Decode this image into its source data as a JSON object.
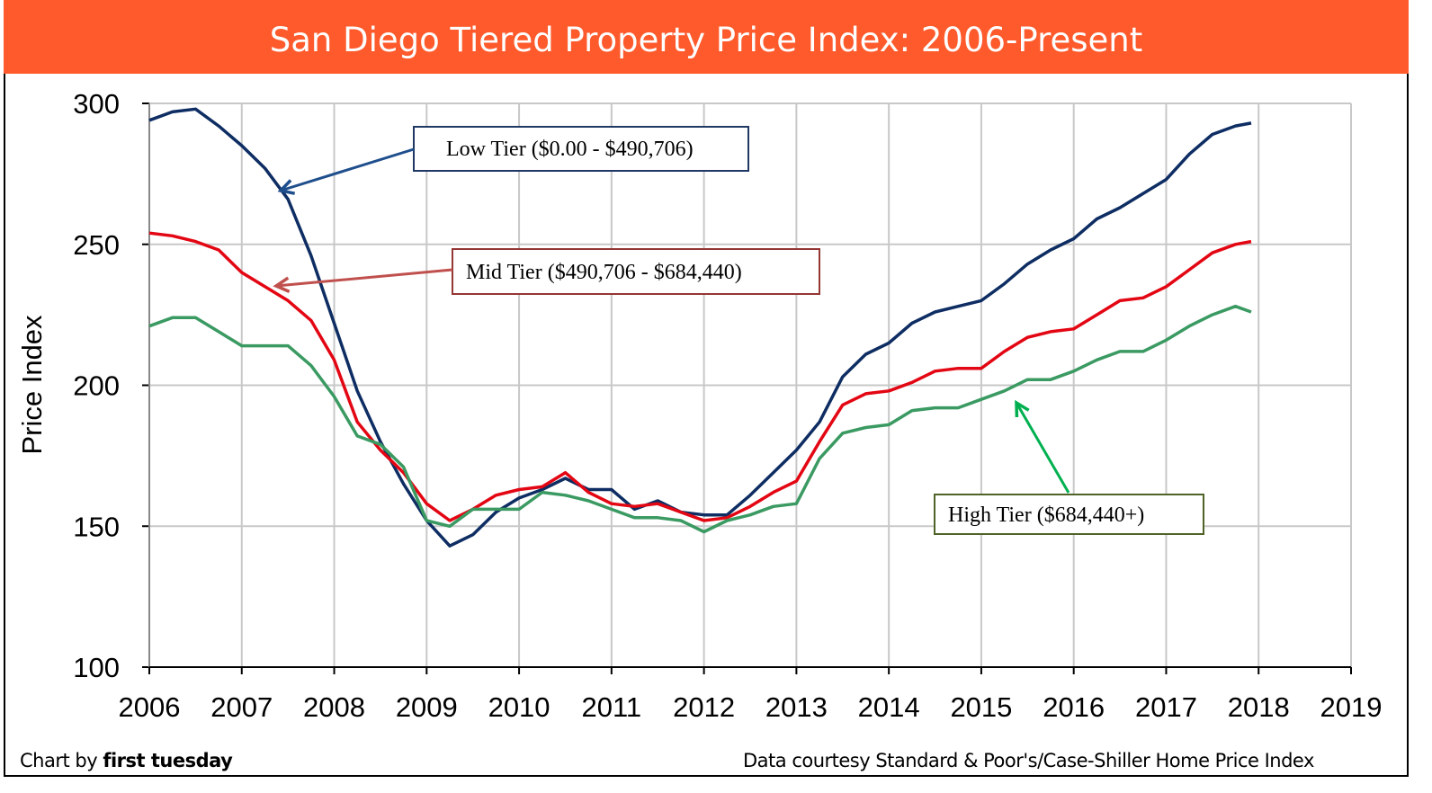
{
  "chart_data": {
    "type": "line",
    "title": "San Diego Tiered Property Price Index: 2006-Present",
    "xlabel": "",
    "ylabel": "Price Index",
    "xlim": [
      2006,
      2019
    ],
    "ylim": [
      100,
      300
    ],
    "x_ticks": [
      "2006",
      "2007",
      "2008",
      "2009",
      "2010",
      "2011",
      "2012",
      "2013",
      "2014",
      "2015",
      "2016",
      "2017",
      "2018",
      "2019"
    ],
    "y_ticks": [
      "100",
      "150",
      "200",
      "250",
      "300"
    ],
    "grid": true,
    "x": [
      2006.0,
      2006.25,
      2006.5,
      2006.75,
      2007.0,
      2007.25,
      2007.5,
      2007.75,
      2008.0,
      2008.25,
      2008.5,
      2008.75,
      2009.0,
      2009.25,
      2009.5,
      2009.75,
      2010.0,
      2010.25,
      2010.5,
      2010.75,
      2011.0,
      2011.25,
      2011.5,
      2011.75,
      2012.0,
      2012.25,
      2012.5,
      2012.75,
      2013.0,
      2013.25,
      2013.5,
      2013.75,
      2014.0,
      2014.25,
      2014.5,
      2014.75,
      2015.0,
      2015.25,
      2015.5,
      2015.75,
      2016.0,
      2016.25,
      2016.5,
      2016.75,
      2017.0,
      2017.25,
      2017.5,
      2017.75,
      2017.92
    ],
    "series": [
      {
        "name": "Low Tier ($0.00 - $490,706)",
        "color": "#0e2d63",
        "values": [
          294,
          297,
          298,
          292,
          285,
          277,
          266,
          246,
          222,
          198,
          180,
          165,
          152,
          143,
          147,
          155,
          160,
          163,
          167,
          163,
          163,
          156,
          159,
          155,
          154,
          154,
          161,
          169,
          177,
          187,
          203,
          211,
          215,
          222,
          226,
          228,
          230,
          236,
          243,
          248,
          252,
          259,
          263,
          268,
          273,
          282,
          289,
          292,
          293
        ]
      },
      {
        "name": "Mid Tier ($490,706 - $684,440)",
        "color": "#e30613",
        "values": [
          254,
          253,
          251,
          248,
          240,
          235,
          230,
          223,
          209,
          187,
          177,
          169,
          158,
          152,
          156,
          161,
          163,
          164,
          169,
          162,
          158,
          157,
          158,
          155,
          152,
          153,
          157,
          162,
          166,
          180,
          193,
          197,
          198,
          201,
          205,
          206,
          206,
          212,
          217,
          219,
          220,
          225,
          230,
          231,
          235,
          241,
          247,
          250,
          251
        ]
      },
      {
        "name": "High Tier ($684,440+)",
        "color": "#3a9a62",
        "values": [
          221,
          224,
          224,
          219,
          214,
          214,
          214,
          207,
          196,
          182,
          179,
          171,
          152,
          150,
          156,
          156,
          156,
          162,
          161,
          159,
          156,
          153,
          153,
          152,
          148,
          152,
          154,
          157,
          158,
          174,
          183,
          185,
          186,
          191,
          192,
          192,
          195,
          198,
          202,
          202,
          205,
          209,
          212,
          212,
          216,
          221,
          225,
          228,
          226
        ]
      }
    ],
    "annotations": [
      {
        "text": "Low Tier ($0.00 - $490,706)",
        "border": "#1f3864",
        "arrow": "#1f4e8c"
      },
      {
        "text": "Mid Tier ($490,706 - $684,440)",
        "border": "#943634",
        "arrow": "#c0504d"
      },
      {
        "text": "High Tier ($684,440+)",
        "border": "#4f6228",
        "arrow": "#00b050"
      }
    ]
  },
  "header_color": "#fe5a2c",
  "footer": {
    "credit_prefix": "Chart by ",
    "credit_brand": "first tuesday",
    "source": "Data courtesy Standard & Poor's/Case-Shiller Home Price Index"
  }
}
